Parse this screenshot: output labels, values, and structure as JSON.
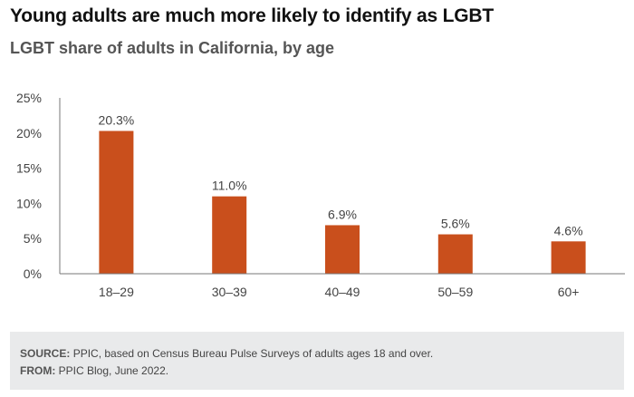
{
  "title": "Young adults are much more likely to identify as LGBT",
  "subtitle": "LGBT share of adults in California, by age",
  "chart_data": {
    "type": "bar",
    "categories": [
      "18–29",
      "30–39",
      "40–49",
      "50–59",
      "60+"
    ],
    "values": [
      20.3,
      11.0,
      6.9,
      5.6,
      4.6
    ],
    "value_labels": [
      "20.3%",
      "11.0%",
      "6.9%",
      "5.6%",
      "4.6%"
    ],
    "yticks": [
      "0%",
      "5%",
      "10%",
      "15%",
      "20%",
      "25%"
    ],
    "ylim": [
      0,
      25
    ],
    "grid": false,
    "bar_color": "#c94f1c"
  },
  "footer": {
    "source_label": "SOURCE:",
    "source_text": "PPIC, based on Census Bureau Pulse Surveys of adults ages 18 and over.",
    "from_label": "FROM:",
    "from_text": "PPIC Blog, June 2022."
  }
}
